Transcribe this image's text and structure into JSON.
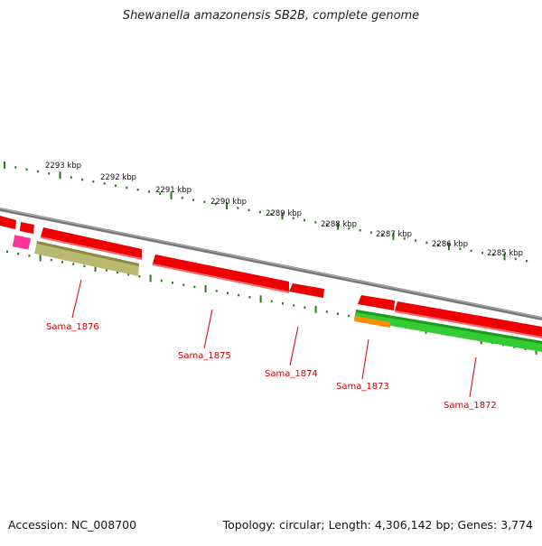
{
  "title": "Shewanella amazonensis SB2B, complete genome",
  "footer": {
    "accession": "Accession: NC_008700",
    "summary": "Topology: circular; Length: 4,306,142 bp; Genes: 3,774"
  },
  "scale_labels": [
    "2293 kbp",
    "2292 kbp",
    "2291 kbp",
    "2290 kbp",
    "2289 kbp",
    "2288 kbp",
    "2287 kbp",
    "2286 kbp",
    "2285 kbp"
  ],
  "gene_labels": [
    "Sama_1876",
    "Sama_1875",
    "Sama_1874",
    "Sama_1873",
    "Sama_1872"
  ],
  "colors": {
    "backbone": "#888888",
    "tick": "#2a7a1a",
    "gene_red": "#ee0000",
    "gene_olive": "#b8b870",
    "gene_green": "#33cc33",
    "gene_orange": "#ff8c00",
    "gene_pink": "#ff3399",
    "label_red": "#cc0000"
  }
}
